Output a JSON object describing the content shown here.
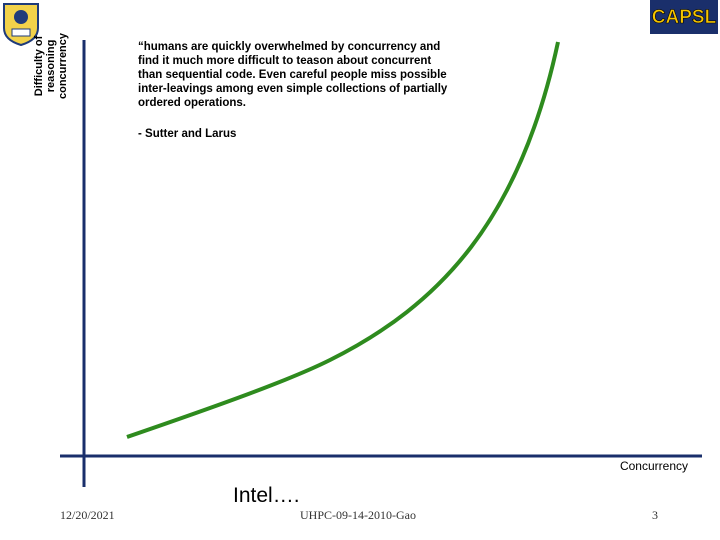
{
  "slide": {
    "logo_text": "CAPSL",
    "y_axis_label": [
      "Difficulty of",
      "reasoning",
      "concurrency"
    ],
    "quote": [
      "“humans are quickly overwhelmed by concurrency and",
      "find it much more difficult to teason about concurrent",
      "than sequential code. Even careful people miss possible",
      "inter-leavings among even simple collections of partially",
      "ordered operations."
    ],
    "attribution": "- Sutter and Larus",
    "x_axis_label": "Concurrency",
    "note": "Intel….",
    "footer": {
      "date": "12/20/2021",
      "center": "UHPC-09-14-2010-Gao",
      "page": "3"
    }
  }
}
